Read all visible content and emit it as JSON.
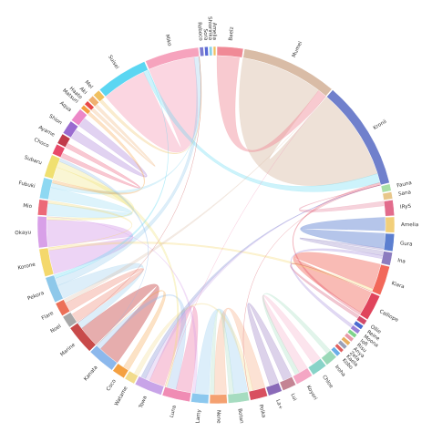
{
  "chart_data": {
    "type": "chord",
    "title": "",
    "nodes": [
      {
        "name": "Suisei",
        "share": 6.0,
        "color": "#5bd6f2"
      },
      {
        "name": "Miko",
        "share": 6.2,
        "color": "#f6a3bd"
      },
      {
        "name": "Roboco",
        "share": 0.45,
        "color": "#7b7bd1"
      },
      {
        "name": "Sora",
        "share": 0.4,
        "color": "#5a6bd6"
      },
      {
        "name": "Shiorinka",
        "share": 0.35,
        "color": "#8ad1e6"
      },
      {
        "name": "Amelia",
        "share": 0.3,
        "color": "#f0c060"
      },
      {
        "name": "Baelz",
        "share": 3.0,
        "color": "#f08a96"
      },
      {
        "name": "Mumei",
        "share": 11.0,
        "color": "#d9bca6"
      },
      {
        "name": "Kronii",
        "share": 12.5,
        "color": "#7080cc"
      },
      {
        "name": "Fauna",
        "share": 0.8,
        "color": "#a9e0a6"
      },
      {
        "name": "Sana",
        "share": 0.8,
        "color": "#e8c78a"
      },
      {
        "name": "IRyS",
        "share": 1.8,
        "color": "#e26c8c"
      },
      {
        "name": "Amelia",
        "share": 1.8,
        "color": "#f2cf7a"
      },
      {
        "name": "Gura",
        "share": 2.0,
        "color": "#5c7fd0"
      },
      {
        "name": "Ina",
        "share": 1.5,
        "color": "#8c7cbf"
      },
      {
        "name": "Kiara",
        "share": 3.4,
        "color": "#f2685a"
      },
      {
        "name": "Calliope",
        "share": 3.0,
        "color": "#e0445c"
      },
      {
        "name": "Ollie",
        "share": 0.6,
        "color": "#d24a6a"
      },
      {
        "name": "Reine",
        "share": 0.5,
        "color": "#4a6ad0"
      },
      {
        "name": "Moona",
        "share": 0.5,
        "color": "#9a80d8"
      },
      {
        "name": "Iofi",
        "share": 0.45,
        "color": "#7fd38a"
      },
      {
        "name": "Risu",
        "share": 0.45,
        "color": "#e89aa8"
      },
      {
        "name": "Anya",
        "share": 0.45,
        "color": "#e8b060"
      },
      {
        "name": "Zeta",
        "share": 0.45,
        "color": "#9aa0b8"
      },
      {
        "name": "Kaela",
        "share": 0.4,
        "color": "#e06060"
      },
      {
        "name": "Kobo",
        "share": 0.5,
        "color": "#6aaee8"
      },
      {
        "name": "Iroha",
        "share": 1.4,
        "color": "#9ad9b8"
      },
      {
        "name": "Chloe",
        "share": 1.8,
        "color": "#88d3c8"
      },
      {
        "name": "Koyori",
        "share": 2.0,
        "color": "#f4a6c4"
      },
      {
        "name": "Lui",
        "share": 1.6,
        "color": "#c48494"
      },
      {
        "name": "La+",
        "share": 1.6,
        "color": "#8a6ab8"
      },
      {
        "name": "Polka",
        "share": 2.0,
        "color": "#d85060"
      },
      {
        "name": "Botan",
        "share": 2.4,
        "color": "#a6dcc0"
      },
      {
        "name": "Nene",
        "share": 2.0,
        "color": "#f4a070"
      },
      {
        "name": "Lamy",
        "share": 2.0,
        "color": "#8cc8ee"
      },
      {
        "name": "Luna",
        "share": 3.2,
        "color": "#f08cb4"
      },
      {
        "name": "Towa",
        "share": 3.2,
        "color": "#c8a4e8"
      },
      {
        "name": "Watame",
        "share": 1.2,
        "color": "#f2dc8c"
      },
      {
        "name": "Coco",
        "share": 1.5,
        "color": "#f4a040"
      },
      {
        "name": "Kanata",
        "share": 3.2,
        "color": "#8cb8ec"
      },
      {
        "name": "Marine",
        "share": 3.4,
        "color": "#c84a4a"
      },
      {
        "name": "Noel",
        "share": 1.4,
        "color": "#a8a8a8"
      },
      {
        "name": "Flare",
        "share": 1.6,
        "color": "#ec7058"
      },
      {
        "name": "Pekora",
        "share": 3.0,
        "color": "#8ec8ea"
      },
      {
        "name": "Korone",
        "share": 3.2,
        "color": "#f4d86c"
      },
      {
        "name": "Okayu",
        "share": 3.6,
        "color": "#d8a0e8"
      },
      {
        "name": "Mio",
        "share": 1.8,
        "color": "#ec6a78"
      },
      {
        "name": "Fubuki",
        "share": 2.4,
        "color": "#8ed8f2"
      },
      {
        "name": "Subaru",
        "share": 2.6,
        "color": "#f0e070"
      },
      {
        "name": "Choco",
        "share": 1.2,
        "color": "#e84a6a"
      },
      {
        "name": "Ayame",
        "share": 1.2,
        "color": "#c03a4a"
      },
      {
        "name": "Shion",
        "share": 1.6,
        "color": "#9a6ad0"
      },
      {
        "name": "Aqua",
        "share": 1.6,
        "color": "#ec88c8"
      },
      {
        "name": "Matsuri",
        "share": 0.5,
        "color": "#f4a040"
      },
      {
        "name": "Haato",
        "share": 0.5,
        "color": "#e84848"
      },
      {
        "name": "Aki",
        "share": 0.7,
        "color": "#f0b070"
      },
      {
        "name": "Mel",
        "share": 0.8,
        "color": "#f0c060"
      }
    ],
    "links": [
      [
        "Mumei",
        "Kronii",
        6
      ],
      [
        "Miko",
        "Suisei",
        4
      ],
      [
        "Baelz",
        "Mumei",
        1.6
      ],
      [
        "Kiara",
        "Calliope",
        1.8
      ],
      [
        "Gura",
        "Amelia",
        1.0
      ],
      [
        "Okayu",
        "Korone",
        1.8
      ],
      [
        "Marine",
        "Kanata",
        1.4
      ],
      [
        "Luna",
        "Towa",
        1.0
      ],
      [
        "Lamy",
        "Botan",
        0.9
      ],
      [
        "Nene",
        "Polka",
        0.8
      ],
      [
        "Pekora",
        "Marine",
        0.9
      ],
      [
        "Fubuki",
        "Mio",
        0.8
      ],
      [
        "Subaru",
        "Okayu",
        0.8
      ],
      [
        "Flare",
        "Noel",
        0.6
      ],
      [
        "Koyori",
        "Chloe",
        0.6
      ],
      [
        "La+",
        "Lui",
        0.6
      ],
      [
        "Shion",
        "Aqua",
        0.6
      ],
      [
        "Kanata",
        "Luna",
        0.6
      ],
      [
        "Suisei",
        "Kronii",
        0.6
      ],
      [
        "Calliope",
        "Kronii",
        0.5
      ],
      [
        "Pekora",
        "Miko",
        0.5
      ],
      [
        "Korone",
        "Kiara",
        0.5
      ],
      [
        "Towa",
        "Kronii",
        0.3
      ],
      [
        "Subaru",
        "Luna",
        0.4
      ],
      [
        "Watame",
        "Polka",
        0.3
      ],
      [
        "Coco",
        "Kanata",
        0.4
      ],
      [
        "Ina",
        "Gura",
        0.3
      ],
      [
        "Iroha",
        "Koyori",
        0.3
      ],
      [
        "Fubuki",
        "Miko",
        0.3
      ],
      [
        "Choco",
        "Ayame",
        0.3
      ],
      [
        "Mumei",
        "Flare",
        0.3
      ],
      [
        "Okayu",
        "Lamy",
        0.3
      ],
      [
        "Kronii",
        "Towa",
        0.3
      ],
      [
        "IRyS",
        "Kronii",
        0.3
      ],
      [
        "Suisei",
        "Pekora",
        0.3
      ],
      [
        "Korone",
        "Mio",
        0.3
      ],
      [
        "Aki",
        "Haato",
        0.2
      ],
      [
        "Mel",
        "Miko",
        0.2
      ],
      [
        "Matsuri",
        "Fubuki",
        0.2
      ],
      [
        "Botan",
        "Nene",
        0.3
      ],
      [
        "Polka",
        "Kronii",
        0.2
      ],
      [
        "Marine",
        "Miko",
        0.3
      ],
      [
        "Kanata",
        "Subaru",
        0.2
      ],
      [
        "Luna",
        "Mumei",
        0.2
      ],
      [
        "Ollie",
        "Kiara",
        0.2
      ],
      [
        "Moona",
        "Ina",
        0.2
      ]
    ]
  }
}
